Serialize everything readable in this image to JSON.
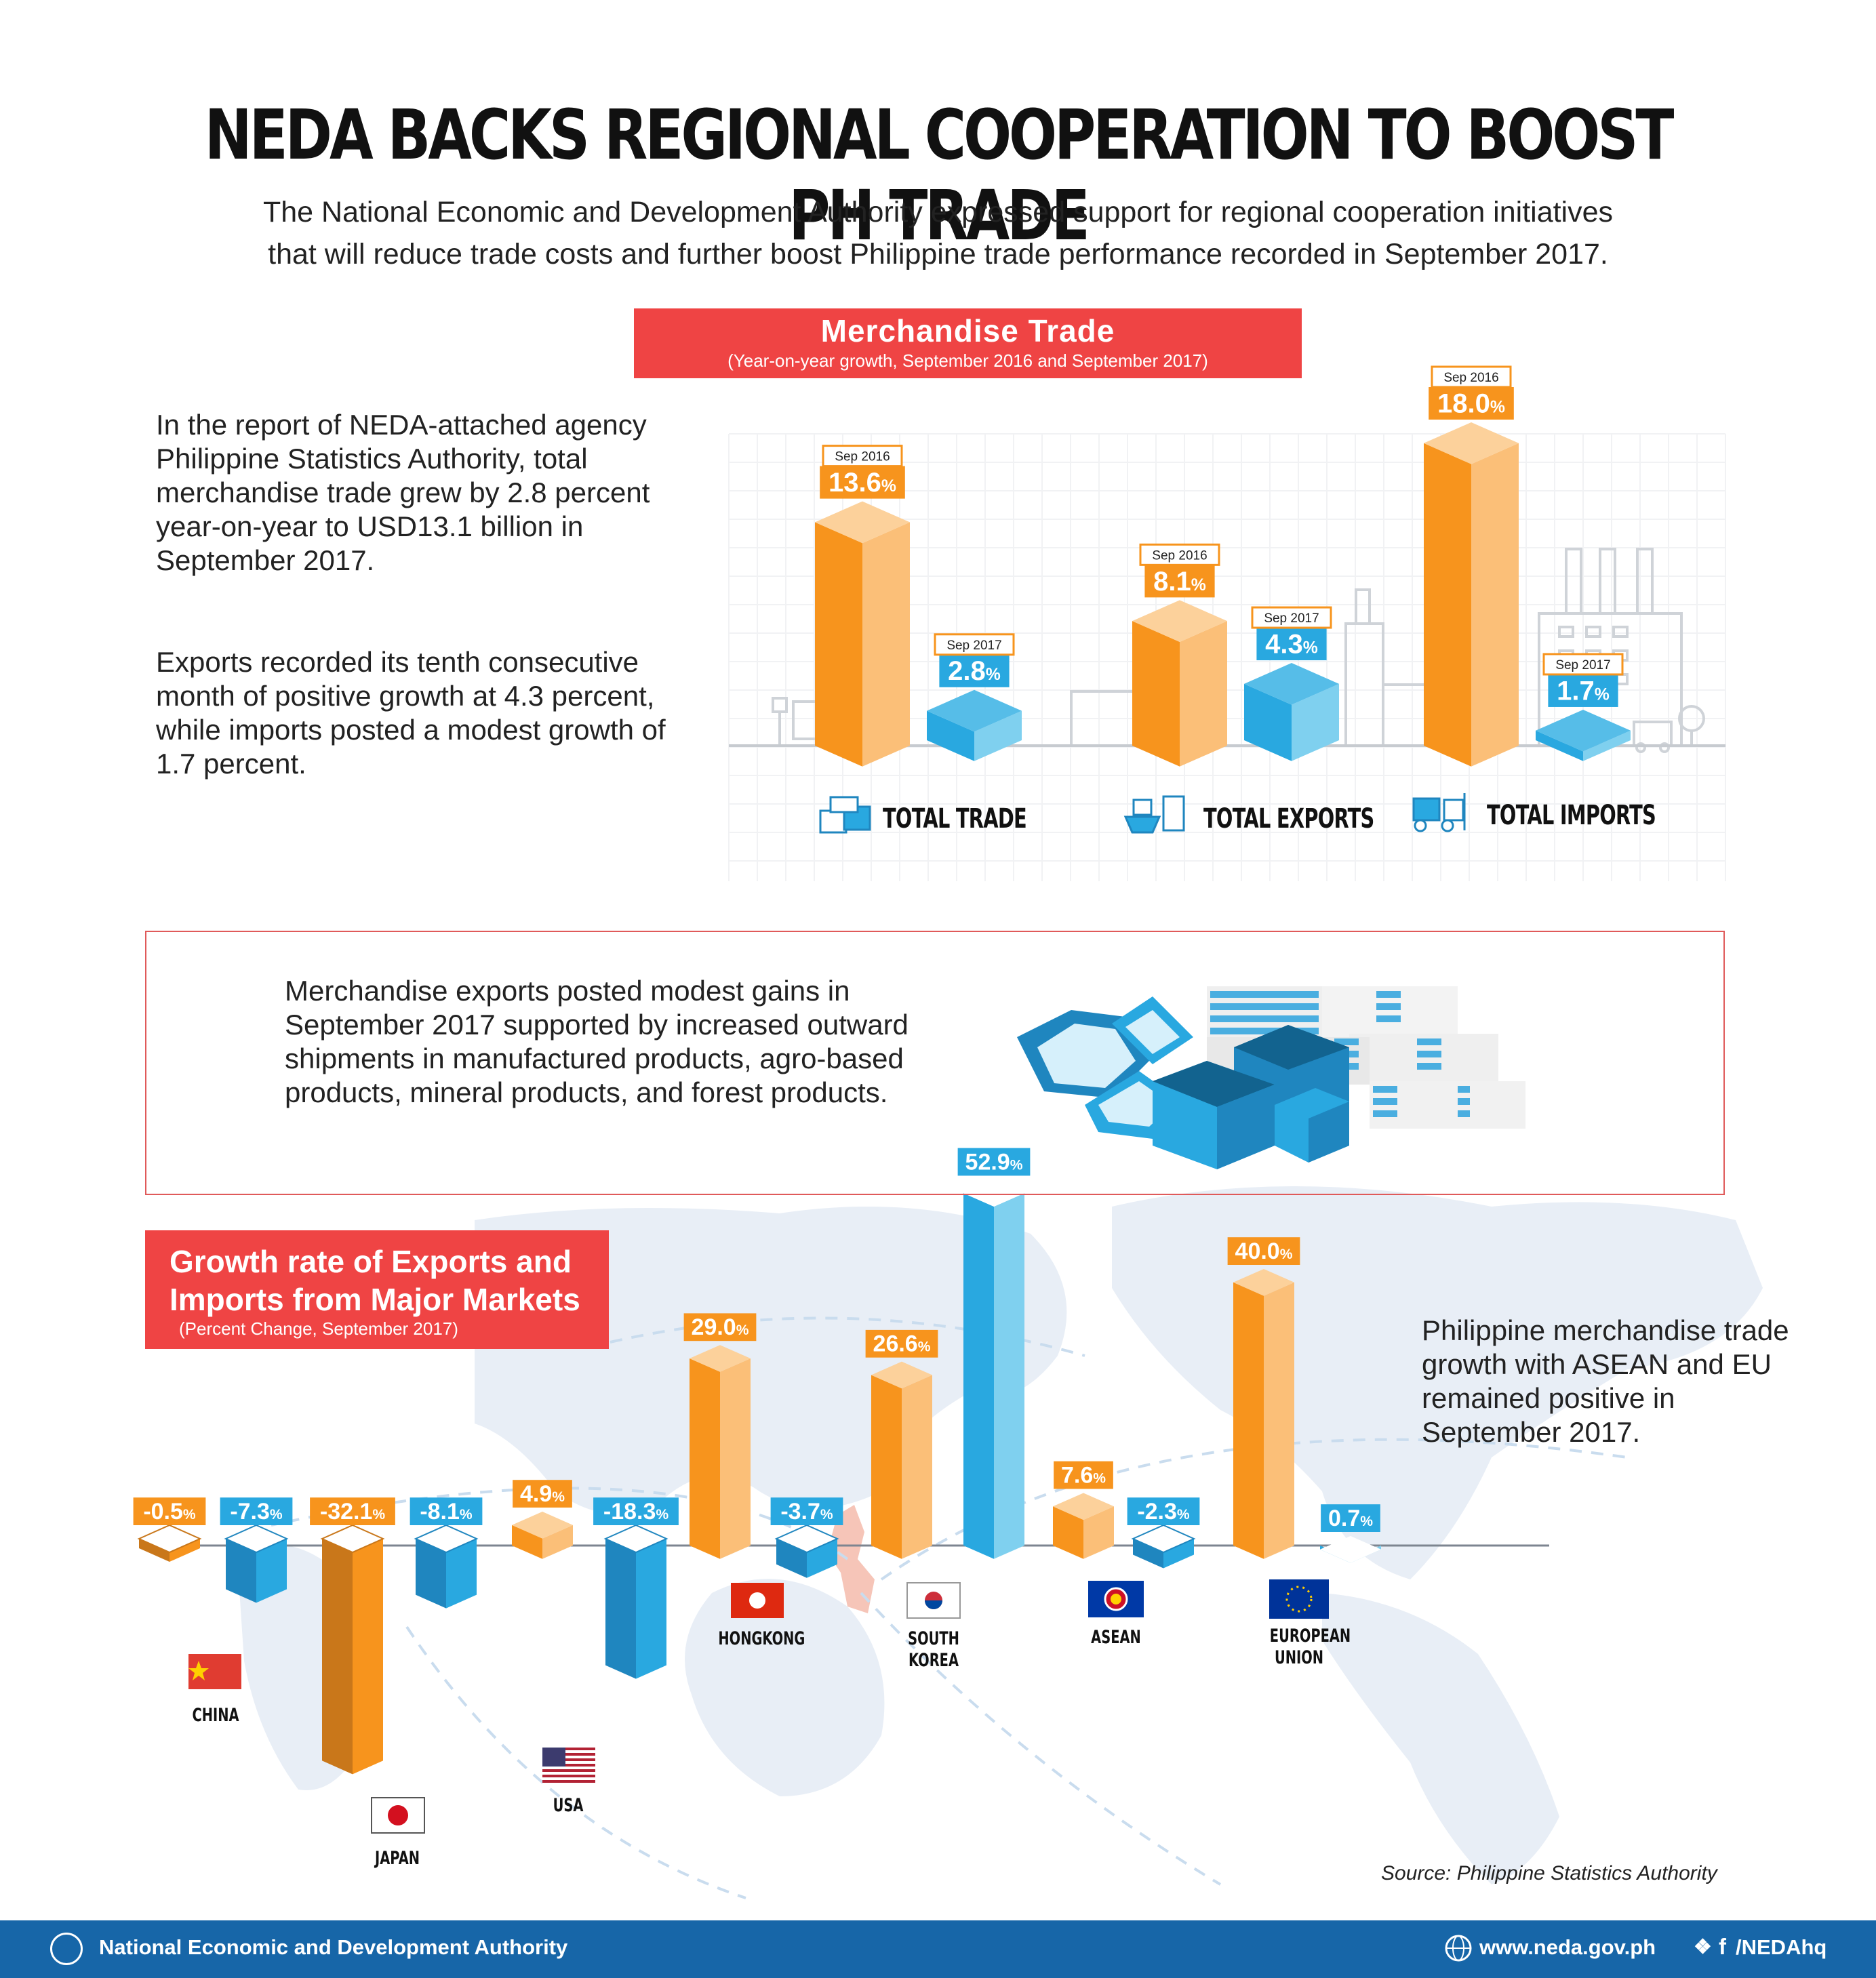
{
  "title": "NEDA BACKS REGIONAL COOPERATION TO BOOST PH TRADE",
  "subtitle_line1": "The National Economic and Development Authority expressed support for regional cooperation initiatives",
  "subtitle_line2": "that will reduce trade costs and further boost Philippine trade performance recorded in September 2017.",
  "section1": {
    "banner_title": "Merchandise Trade",
    "banner_subtitle": "(Year-on-year growth, September 2016 and September 2017)",
    "paragraph1": "In the report of NEDA-attached agency Philippine Statistics Authority, total merchandise trade grew by 2.8 percent year-on-year to USD13.1 billion in September 2017.",
    "paragraph2": "Exports recorded its tenth consecutive month of positive growth at 4.3 percent, while imports posted a modest growth of 1.7 percent."
  },
  "section2": {
    "text": "Merchandise exports posted modest gains in September 2017 supported by increased outward shipments in manufactured products, agro-based products, mineral products, and forest products."
  },
  "section3": {
    "banner_title_line1": "Growth rate of Exports and",
    "banner_title_line2": "Imports from Major Markets",
    "banner_subtitle": "(Percent Change, September 2017)",
    "side_text": "Philippine merchandise trade growth with ASEAN and EU remained positive in September 2017."
  },
  "source": "Source: Philippine Statistics Authority",
  "footer": {
    "org": "National Economic and Development Authority",
    "website": "www.neda.gov.ph",
    "social": "/NEDAhq"
  },
  "colors": {
    "orange": "#f7941d",
    "orange_light": "#fbbf78",
    "blue": "#29a8e0",
    "blue_dark": "#1f86bf",
    "red": "#ef4444",
    "footer_blue": "#1766a8"
  },
  "chart_data": [
    {
      "type": "bar",
      "title": "Merchandise Trade",
      "subtitle": "(Year-on-year growth, September 2016 and September 2017)",
      "categories": [
        "TOTAL TRADE",
        "TOTAL EXPORTS",
        "TOTAL IMPORTS"
      ],
      "series": [
        {
          "name": "Sep 2016",
          "values": [
            13.6,
            8.1,
            18.0
          ],
          "labels": [
            "13.6",
            "8.1",
            "18.0"
          ]
        },
        {
          "name": "Sep 2017",
          "values": [
            2.8,
            4.3,
            1.7
          ],
          "labels": [
            "2.8",
            "4.3",
            "1.7"
          ]
        }
      ],
      "unit": "%",
      "ylim": [
        0,
        18
      ]
    },
    {
      "type": "bar",
      "title": "Growth rate of Exports and Imports from Major Markets",
      "subtitle": "(Percent Change, September 2017)",
      "categories": [
        "CHINA",
        "JAPAN",
        "USA",
        "HONGKONG",
        "SOUTH KOREA",
        "ASEAN",
        "EUROPEAN UNION"
      ],
      "series": [
        {
          "values": [
            -0.5,
            -32.1,
            4.9,
            29.0,
            26.6,
            7.6,
            40.0
          ],
          "labels": [
            "-0.5",
            "-32.1",
            "4.9",
            "29.0",
            "26.6",
            "7.6",
            "40.0"
          ]
        },
        {
          "values": [
            -7.3,
            -8.1,
            -18.3,
            -3.7,
            52.9,
            -2.3,
            0.7
          ],
          "labels": [
            "-7.3",
            "-8.1",
            "-18.3",
            "-3.7",
            "52.9",
            "-2.3",
            "0.7"
          ]
        }
      ],
      "unit": "%",
      "ylim": [
        -35,
        55
      ]
    }
  ]
}
